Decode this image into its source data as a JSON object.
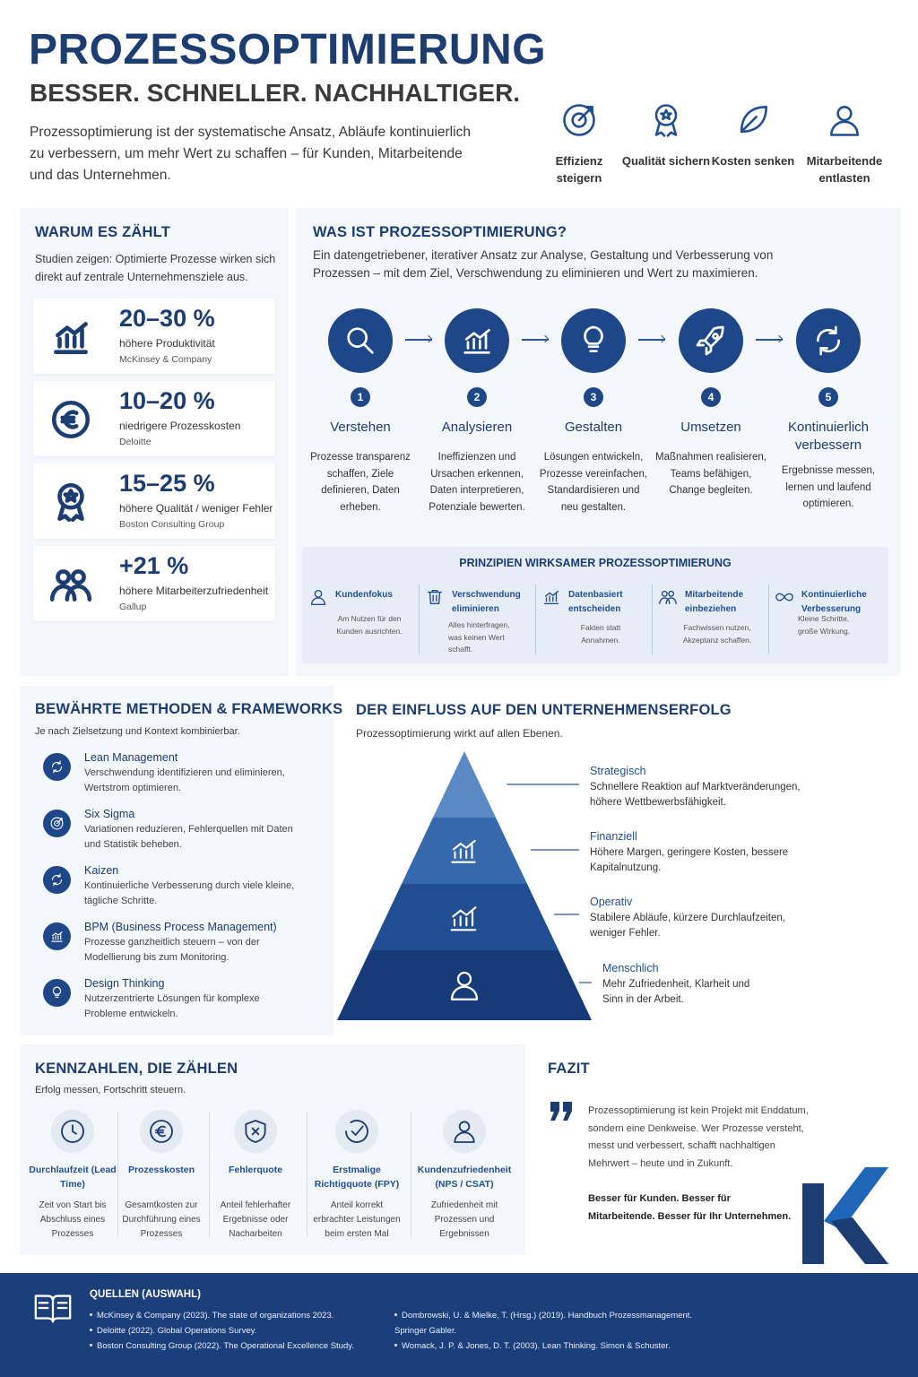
{
  "header": {
    "title": "PROZESSOPTIMIERUNG",
    "subtitle": "BESSER. SCHNELLER. NACHHALTIGER.",
    "intro": "Prozessoptimierung ist der systematische Ansatz, Abläufe kontinuierlich zu verbessern, um mehr Wert zu schaffen – für Kunden, Mitarbeitende und das Unternehmen.",
    "goals": [
      "Effizienz steigern",
      "Qualität sichern",
      "Kosten senken",
      "Mitarbeitende entlasten"
    ]
  },
  "why": {
    "title": "WARUM ES ZÄHLT",
    "intro": "Studien zeigen: Optimierte Prozesse wirken sich direkt auf zentrale Unternehmensziele aus.",
    "stats": [
      {
        "value": "20–30 %",
        "label": "höhere Produktivität",
        "source": "McKinsey & Company"
      },
      {
        "value": "10–20 %",
        "label": "niedrigere Prozesskosten",
        "source": "Deloitte"
      },
      {
        "value": "15–25 %",
        "label": "höhere Qualität / weniger Fehler",
        "source": "Boston Consulting Group"
      },
      {
        "value": "+21 %",
        "label": "höhere Mitarbeiterzufriedenheit",
        "source": "Gallup"
      }
    ]
  },
  "what": {
    "title": "WAS IST PROZESSOPTIMIERUNG?",
    "intro": "Ein datengetriebener, iterativer Ansatz zur Analyse, Gestaltung und Verbesserung von Prozessen – mit dem Ziel, Verschwendung zu eliminieren und Wert zu maximieren.",
    "steps": [
      {
        "number": 1,
        "title": "Verstehen",
        "text": "Prozesse transparenz schaffen, Ziele definieren, Daten erheben."
      },
      {
        "number": 2,
        "title": "Analysieren",
        "text": "Ineffizienzen und Ursachen erkennen, Daten interpretieren, Potenziale bewerten."
      },
      {
        "number": 3,
        "title": "Gestalten",
        "text": "Lösungen entwickeln, Prozesse vereinfachen, Standardisieren und neu gestalten."
      },
      {
        "number": 4,
        "title": "Umsetzen",
        "text": "Maßnahmen realisieren, Teams befähigen, Change begleiten."
      },
      {
        "number": 5,
        "title": "Kontinuierlich verbessern",
        "text": "Ergebnisse messen, lernen und laufend optimieren."
      }
    ],
    "principles": {
      "title": "PRINZIPIEN WIRKSAMER PROZESSOPTIMIERUNG",
      "items": [
        {
          "title": "Kundenfokus",
          "text": "Am Nutzen für den Kunden ausrichten."
        },
        {
          "title": "Verschwendung eliminieren",
          "text": "Alles hinterfragen, was keinen Wert schafft."
        },
        {
          "title": "Datenbasiert entscheiden",
          "text": "Fakten statt Annahmen."
        },
        {
          "title": "Mitarbeitende einbeziehen",
          "text": "Fachwissen nutzen, Akzeptanz schaffen."
        },
        {
          "title": "Kontinuierliche Verbesserung",
          "text": "Kleine Schritte, große Wirkung."
        }
      ]
    }
  },
  "methods": {
    "title": "BEWÄHRTE METHODEN & FRAMEWORKS",
    "intro": "Je nach Zielsetzung und Kontext kombinierbar.",
    "items": [
      {
        "title": "Lean Management",
        "text": "Verschwendung identifizieren und eliminieren, Wertstrom optimieren."
      },
      {
        "title": "Six Sigma",
        "text": "Variationen reduzieren, Fehlerquellen mit Daten und Statistik beheben."
      },
      {
        "title": "Kaizen",
        "text": "Kontinuierliche Verbesserung durch viele kleine, tägliche Schritte."
      },
      {
        "title": "BPM (Business Process Management)",
        "text": "Prozesse ganzheitlich steuern – von der Modellierung bis zum Monitoring."
      },
      {
        "title": "Design Thinking",
        "text": "Nutzerzentrierte Lösungen für komplexe Probleme entwickeln."
      }
    ]
  },
  "impact": {
    "title": "DER EINFLUSS AUF DEN UNTERNEHMENSERFOLG",
    "intro": "Prozessoptimierung wirkt auf allen Ebenen.",
    "levels": [
      {
        "title": "Strategisch",
        "text": "Schnellere Reaktion auf Marktveränderungen, höhere Wettbewerbsfähigkeit."
      },
      {
        "title": "Finanziell",
        "text": "Höhere Margen, geringere Kosten, bessere Kapitalnutzung."
      },
      {
        "title": "Operativ",
        "text": "Stabilere Abläufe, kürzere Durchlaufzeiten, weniger Fehler."
      },
      {
        "title": "Menschlich",
        "text": "Mehr Zufriedenheit, Klarheit und Sinn in der Arbeit."
      }
    ]
  },
  "kpis": {
    "title": "KENNZAHLEN, DIE ZÄHLEN",
    "intro": "Erfolg messen, Fortschritt steuern.",
    "items": [
      {
        "title": "Durchlaufzeit (Lead Time)",
        "text": "Zeit von Start bis Abschluss eines Prozesses"
      },
      {
        "title": "Prozesskosten",
        "text": "Gesamtkosten zur Durchführung eines Prozesses"
      },
      {
        "title": "Fehlerquote",
        "text": "Anteil fehlerhafter Ergebnisse oder Nacharbeiten"
      },
      {
        "title": "Erstmalige Richtigquote (FPY)",
        "text": "Anteil korrekt erbrachter Leistungen beim ersten Mal"
      },
      {
        "title": "Kundenzufriedenheit (NPS / CSAT)",
        "text": "Zufriedenheit mit Prozessen und Ergebnissen"
      }
    ]
  },
  "conclusion": {
    "title": "FAZIT",
    "quote": "Prozessoptimierung ist kein Projekt mit Enddatum, sondern eine Denkweise. Wer Prozesse versteht, messt und verbessert, schafft nachhaltigen Mehrwert – heute und in Zukunft.",
    "closing": "Besser für Kunden. Besser für Mitarbeitende. Besser für Ihr Unternehmen."
  },
  "sources": {
    "title": "QUELLEN (AUSWAHL)",
    "items": [
      "McKinsey & Company (2023). The state of organizations 2023.",
      "Deloitte (2022). Global Operations Survey.",
      "Boston Consulting Group (2022). The Operational Excellence Study.",
      "Dombrowski, U. & Mielke, T. (Hrsg.) (2019). Handbuch Prozessmanagement. Springer Gabler.",
      "Womack, J. P. & Jones, D. T. (2003). Lean Thinking. Simon & Schuster."
    ]
  }
}
